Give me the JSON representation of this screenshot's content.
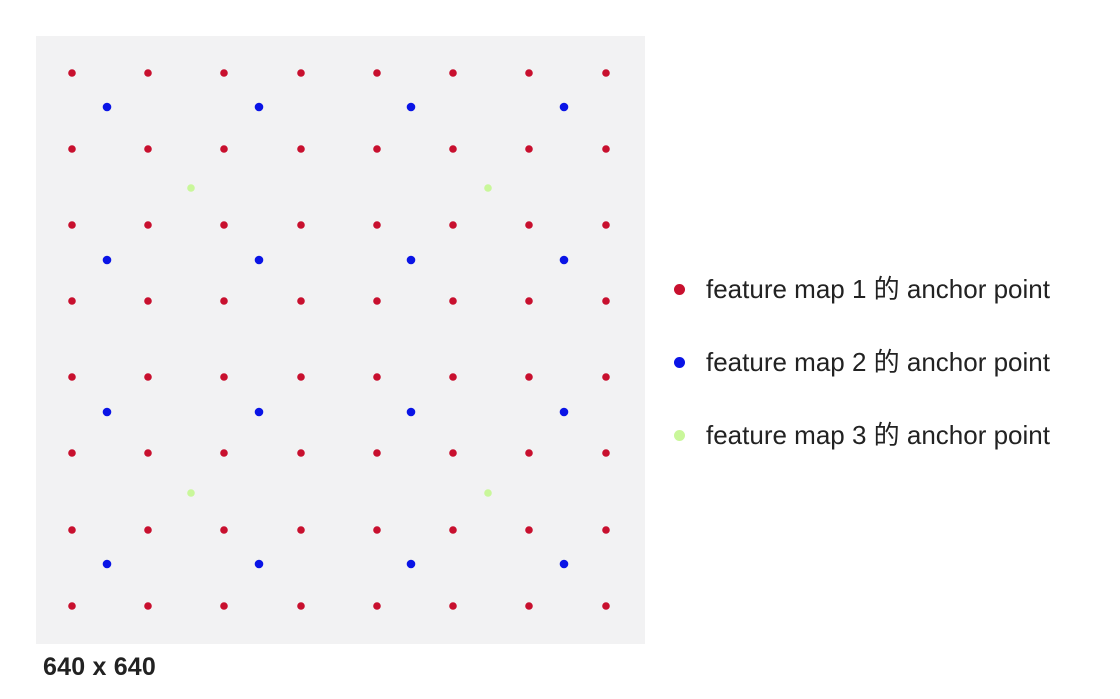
{
  "caption": "640 x 640",
  "colors": {
    "panel_background": "#f2f2f3",
    "feature_map_1": "#c8102e",
    "feature_map_2": "#0a14e6",
    "feature_map_3": "#c9f79a"
  },
  "legend": [
    {
      "label": "feature map 1 的 anchor point",
      "color": "#c8102e"
    },
    {
      "label": "feature map 2 的 anchor point",
      "color": "#0a14e6"
    },
    {
      "label": "feature map 3 的 anchor point",
      "color": "#c9f79a"
    }
  ],
  "anchor_grids": [
    {
      "name": "feature_map_1",
      "color": "#c8102e",
      "rows": 8,
      "cols": 8
    },
    {
      "name": "feature_map_2",
      "color": "#0a14e6",
      "rows": 4,
      "cols": 4
    },
    {
      "name": "feature_map_3",
      "color": "#c9f79a",
      "rows": 2,
      "cols": 2
    }
  ]
}
